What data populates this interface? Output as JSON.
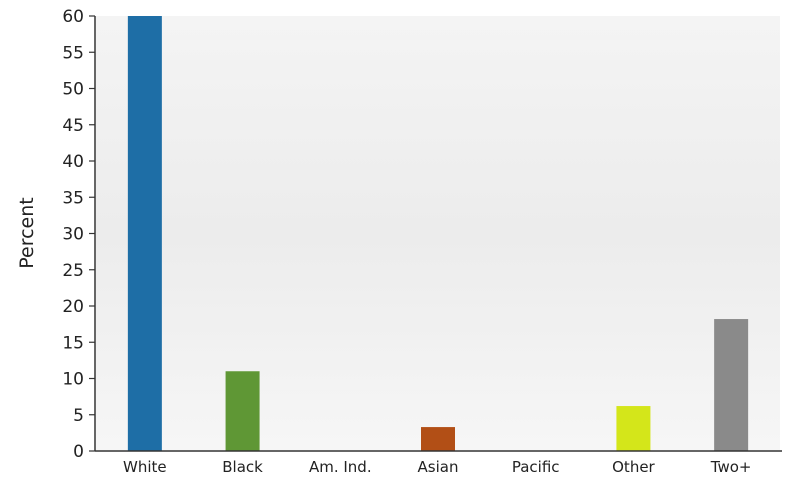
{
  "chart_data": {
    "type": "bar",
    "ylabel": "Percent",
    "ylim": [
      0,
      60
    ],
    "yticks": [
      0,
      5,
      10,
      15,
      20,
      25,
      30,
      35,
      40,
      45,
      50,
      55,
      60
    ],
    "categories": [
      "White",
      "Black",
      "Am. Ind.",
      "Asian",
      "Pacific",
      "Other",
      "Two+"
    ],
    "values": [
      60,
      11,
      0,
      3.3,
      0,
      6.2,
      18.2
    ],
    "colors": [
      "#1e6ea6",
      "#5f9735",
      "#6a2c7a",
      "#b24f16",
      "#3a8f8f",
      "#d4e61a",
      "#8a8a8a"
    ],
    "grid": false,
    "legend": "none"
  }
}
